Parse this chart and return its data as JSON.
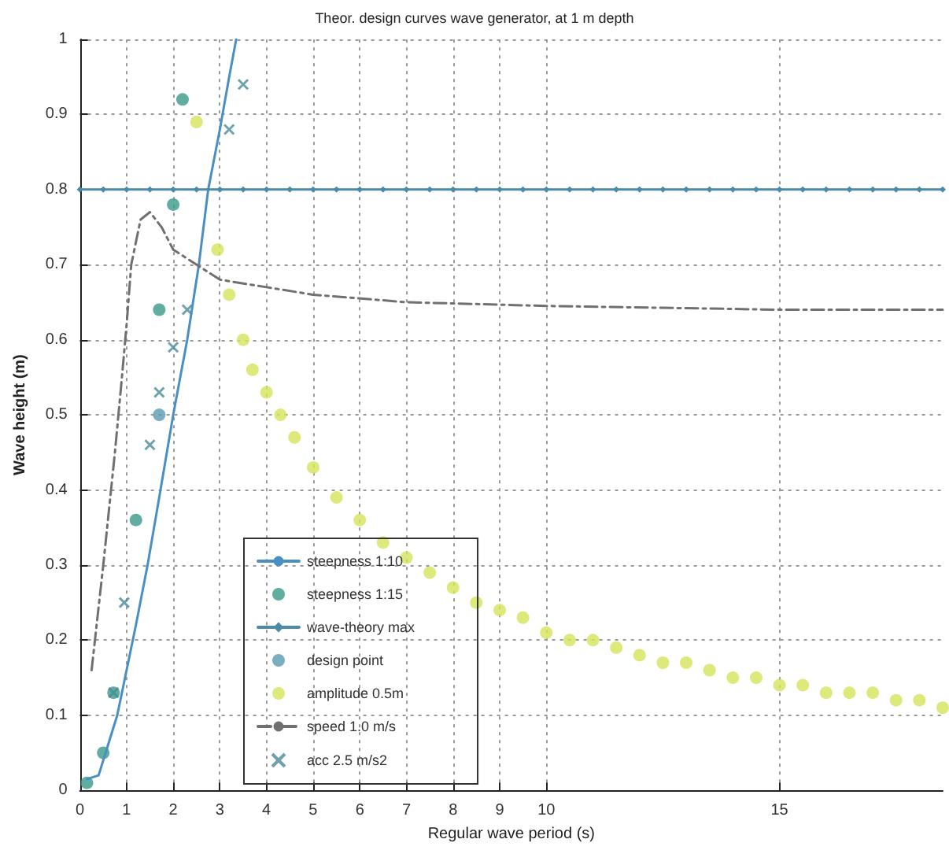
{
  "chart_data": {
    "type": "scatter",
    "title": "Theor. design curves wave generator, at 1 m depth",
    "xlabel": "Regular wave period (s)",
    "ylabel": "Wave height (m)",
    "xlim": [
      0,
      18.5
    ],
    "xticks": [
      0,
      1,
      2,
      3,
      4,
      5,
      6,
      7,
      8,
      9,
      10,
      15
    ],
    "ylim": [
      0,
      1
    ],
    "yticks": [
      0,
      0.1,
      0.2,
      0.3,
      0.4,
      0.5,
      0.6,
      0.7,
      0.8,
      0.9,
      1
    ],
    "grid": true,
    "legend": "bottom left",
    "series": [
      {
        "name": "steepness 1:10",
        "type": "line",
        "marker": "none",
        "line_style": "solid",
        "color": "#4a8fc4",
        "x": [
          0.15,
          0.4,
          0.6,
          0.8,
          1.0,
          1.2,
          1.45,
          1.7,
          2.0,
          2.3,
          2.55,
          2.75,
          3.0,
          3.2,
          3.35
        ],
        "values": [
          0.015,
          0.02,
          0.06,
          0.1,
          0.16,
          0.22,
          0.3,
          0.39,
          0.5,
          0.6,
          0.7,
          0.8,
          0.88,
          0.95,
          1.0
        ]
      },
      {
        "name": "steepness 1:15",
        "marker": "circle",
        "color": "#3a9a8a",
        "x": [
          0.15,
          0.5,
          0.72,
          1.2,
          1.7,
          2.0,
          2.2
        ],
        "values": [
          0.01,
          0.05,
          0.13,
          0.36,
          0.64,
          0.78,
          0.92
        ]
      },
      {
        "name": "wave-theory max",
        "type": "line",
        "marker": "diamond",
        "line_style": "solid",
        "color": "#4a8aaa",
        "x": [
          0,
          0.5,
          1,
          1.5,
          2,
          2.5,
          3,
          3.5,
          4,
          4.5,
          5,
          5.5,
          6,
          6.5,
          7,
          7.5,
          8,
          8.5,
          9,
          9.5,
          10,
          10.5,
          11,
          11.5,
          12,
          12.5,
          13,
          13.5,
          14,
          14.5,
          15,
          15.5,
          16,
          16.5,
          17,
          17.5,
          18,
          18.5
        ],
        "values": [
          0.8,
          0.8,
          0.8,
          0.8,
          0.8,
          0.8,
          0.8,
          0.8,
          0.8,
          0.8,
          0.8,
          0.8,
          0.8,
          0.8,
          0.8,
          0.8,
          0.8,
          0.8,
          0.8,
          0.8,
          0.8,
          0.8,
          0.8,
          0.8,
          0.8,
          0.8,
          0.8,
          0.8,
          0.8,
          0.8,
          0.8,
          0.8,
          0.8,
          0.8,
          0.8,
          0.8,
          0.8,
          0.8
        ]
      },
      {
        "name": "design point",
        "marker": "circle",
        "color": "#5a9ab0",
        "x": [
          1.7
        ],
        "values": [
          0.5
        ]
      },
      {
        "name": "amplitude 0.5m",
        "marker": "circle",
        "color": "#d4e45a",
        "x": [
          2.5,
          2.95,
          3.2,
          3.5,
          3.7,
          4.0,
          4.3,
          4.6,
          5.0,
          5.5,
          6.0,
          6.5,
          7.0,
          7.5,
          8.0,
          8.5,
          9.0,
          9.5,
          10.0,
          10.5,
          11.0,
          11.5,
          12.0,
          12.5,
          13.0,
          13.5,
          14.0,
          14.5,
          15.0,
          15.5,
          16.0,
          16.5,
          17.0,
          17.5,
          18.0,
          18.5
        ],
        "values": [
          0.89,
          0.72,
          0.66,
          0.6,
          0.56,
          0.53,
          0.5,
          0.47,
          0.43,
          0.39,
          0.36,
          0.33,
          0.31,
          0.29,
          0.27,
          0.25,
          0.24,
          0.23,
          0.21,
          0.2,
          0.2,
          0.19,
          0.18,
          0.17,
          0.17,
          0.16,
          0.15,
          0.15,
          0.14,
          0.14,
          0.13,
          0.13,
          0.13,
          0.12,
          0.12,
          0.11
        ]
      },
      {
        "name": "speed 1.0 m/s",
        "type": "line",
        "marker": "none",
        "line_style": "dashed",
        "color": "#707070",
        "x": [
          0.25,
          0.5,
          0.75,
          0.9,
          1.0,
          1.1,
          1.3,
          1.5,
          1.75,
          2.0,
          2.5,
          3.0,
          4.0,
          5.0,
          7.0,
          10.0,
          15.0,
          18.5
        ],
        "values": [
          0.16,
          0.3,
          0.45,
          0.55,
          0.62,
          0.7,
          0.76,
          0.77,
          0.75,
          0.72,
          0.7,
          0.68,
          0.67,
          0.66,
          0.65,
          0.645,
          0.64,
          0.64
        ]
      },
      {
        "name": "acc 2.5 m/s2",
        "marker": "cross",
        "color": "#4a8a9a",
        "x": [
          0.72,
          0.95,
          1.5,
          1.7,
          2.0,
          2.3,
          3.2,
          3.5
        ],
        "values": [
          0.13,
          0.25,
          0.46,
          0.53,
          0.59,
          0.64,
          0.88,
          0.94
        ]
      }
    ]
  }
}
